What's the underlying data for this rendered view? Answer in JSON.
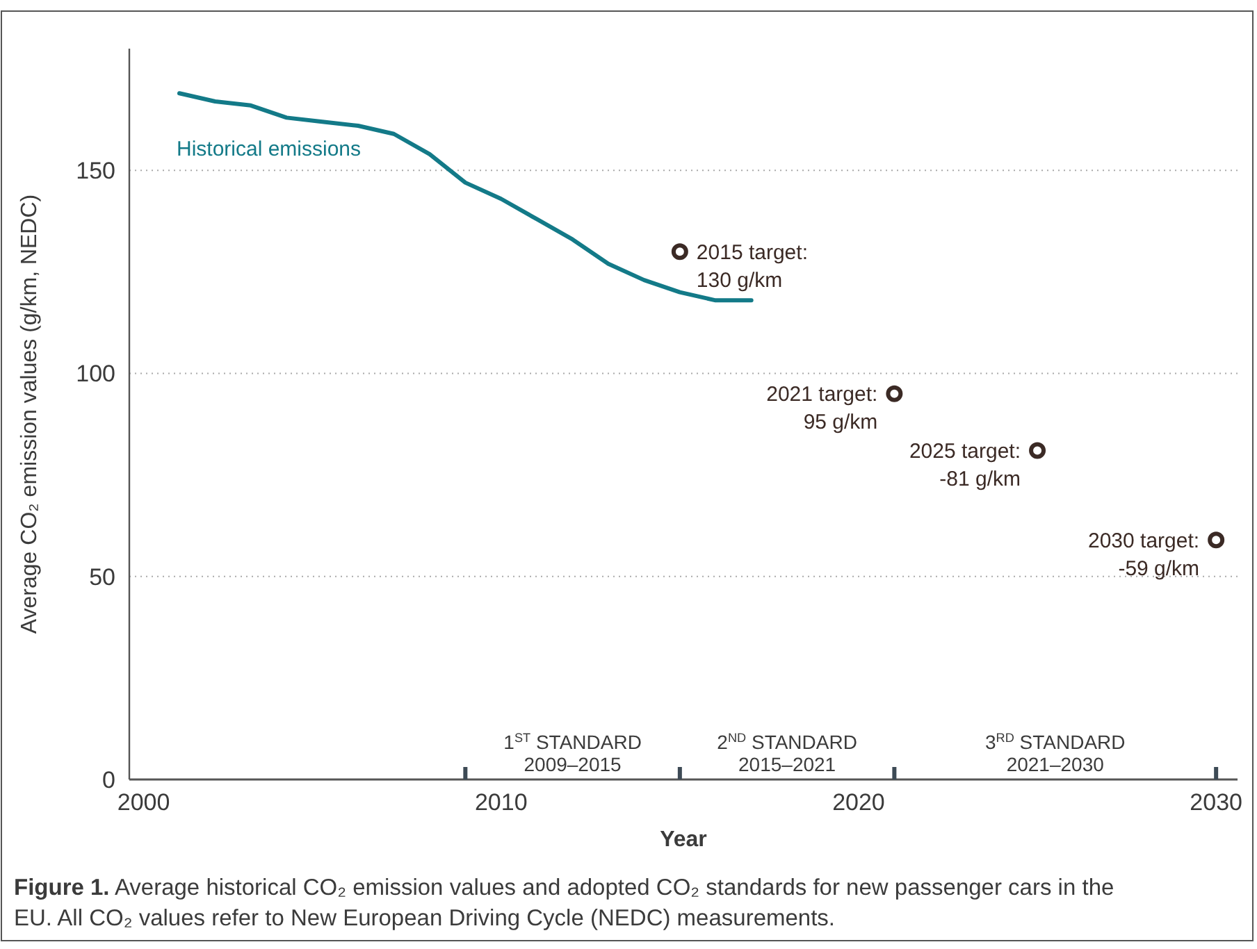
{
  "chart_data": {
    "type": "line",
    "title": "Figure 1.",
    "xlabel": "Year",
    "ylabel": "Average CO₂ emission values (g/km, NEDC)",
    "xlim": [
      1999.6,
      2030.6
    ],
    "xticks": [
      2000,
      {
        "value": 2009,
        "label": null
      },
      2010,
      {
        "value": 2015,
        "label": null
      },
      2020,
      {
        "value": 2021,
        "label": null
      },
      {
        "value": 2030,
        "label": "2030"
      }
    ],
    "ylim": [
      0,
      180
    ],
    "yticks": [
      0,
      50,
      100,
      150
    ],
    "grid": "y",
    "series": [
      {
        "name": "Historical emissions",
        "color": "#137a88",
        "x": [
          2001,
          2002,
          2003,
          2004,
          2005,
          2006,
          2007,
          2008,
          2009,
          2010,
          2011,
          2012,
          2013,
          2014,
          2015,
          2016,
          2017
        ],
        "values": [
          169,
          167,
          166,
          163,
          162,
          161,
          159,
          154,
          147,
          143,
          138,
          133,
          127,
          123,
          120,
          118,
          118
        ]
      },
      {
        "type": "scatter",
        "marker": "circle",
        "color": "#3b2a25",
        "x": [
          2015,
          2021,
          2025,
          2030
        ],
        "values": [
          130,
          95,
          81,
          59
        ]
      }
    ],
    "annotations": [
      "Average historical CO₂ emission values and adopted CO₂ standards for new passenger cars in the EU. All CO₂ values refer to New European Driving Cycle (NEDC) measurements.",
      "1$^{ST}$ STANDARD\n2009–2015",
      "2$^{ND}$ STANDARD\n2015–2021",
      "3$^{RD}$ STANDARD\n2021–2030",
      {
        "text": "2015 target:\n130 g/km",
        "x": 2015,
        "y": 130
      },
      {
        "text": "2021 target:\n95 g/km",
        "x": 2021,
        "y": 95
      },
      {
        "text": "2025 target:\n-81 g/km",
        "x": 2025,
        "y": 81
      },
      {
        "text": "2030 target:\n-59 g/km",
        "x": 2030,
        "y": 59
      }
    ]
  }
}
